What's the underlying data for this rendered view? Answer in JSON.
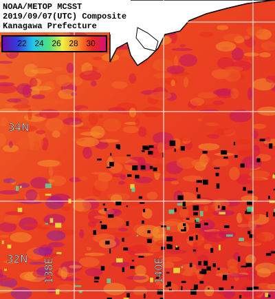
{
  "header": {
    "lines": [
      "NOAA/METOP MCSST",
      "2019/09/07(UTC) Composite",
      "Kanagawa Prefecture"
    ]
  },
  "colorbar": {
    "ticks": [
      22,
      24,
      26,
      28,
      30
    ]
  },
  "grid_labels": {
    "latitudes": [
      "34N",
      "32N"
    ],
    "longitudes": [
      "138E",
      "140E"
    ]
  }
}
